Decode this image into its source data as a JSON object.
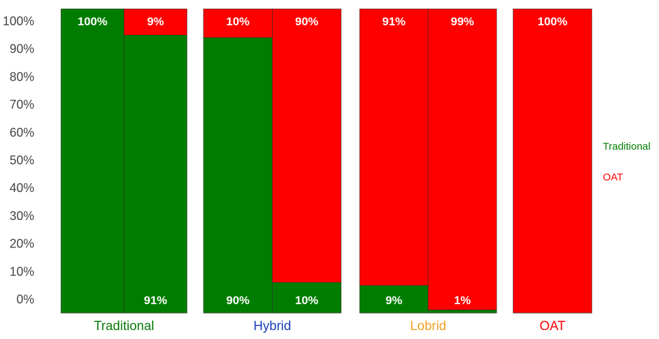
{
  "chart_data": {
    "type": "bar",
    "stacked": true,
    "percent_stacked": true,
    "yticks": [
      "100%",
      "90%",
      "80%",
      "70%",
      "60%",
      "50%",
      "40%",
      "30%",
      "20%",
      "10%",
      "0%"
    ],
    "groups": [
      {
        "name": "Traditional",
        "label_color": "#0a7a0a",
        "bars": [
          {
            "Traditional": 100,
            "OAT": 0,
            "labels": [
              "100%"
            ]
          },
          {
            "Traditional": 91,
            "OAT": 9,
            "labels": [
              "9%",
              "91%"
            ]
          }
        ]
      },
      {
        "name": "Hybrid",
        "label_color": "#1a3fb8",
        "bars": [
          {
            "Traditional": 90,
            "OAT": 10,
            "labels": [
              "10%",
              "90%"
            ]
          },
          {
            "Traditional": 10,
            "OAT": 90,
            "labels": [
              "90%",
              "10%"
            ]
          }
        ]
      },
      {
        "name": "Lobrid",
        "label_color": "#f0a020",
        "bars": [
          {
            "Traditional": 9,
            "OAT": 91,
            "labels": [
              "91%",
              "9%"
            ]
          },
          {
            "Traditional": 1,
            "OAT": 99,
            "labels": [
              "99%",
              "1%"
            ]
          }
        ]
      },
      {
        "name": "OAT",
        "label_color": "#ff0000",
        "bars": [
          {
            "Traditional": 0,
            "OAT": 100,
            "labels": [
              "100%"
            ]
          }
        ]
      }
    ],
    "series": [
      {
        "name": "Traditional",
        "color": "#007d00"
      },
      {
        "name": "OAT",
        "color": "#ff0000"
      }
    ],
    "legend_position": "right",
    "grid": false
  }
}
